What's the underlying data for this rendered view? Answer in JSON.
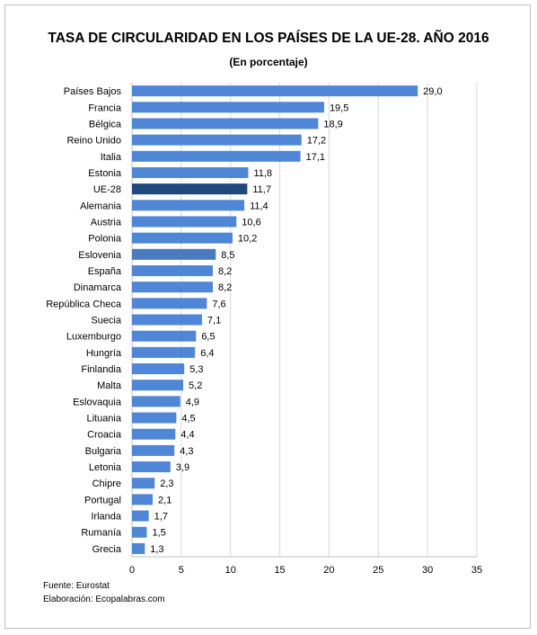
{
  "title": "TASA DE CIRCULARIDAD EN LOS PAÍSES DE LA UE-28. AÑO 2016",
  "subtitle": "(En porcentaje)",
  "source": "Fuente: Eurostat",
  "elaboration": "Elaboración: Ecopalabras.com",
  "colors": {
    "default_bar": "#4f86d6",
    "eu_bar": "#1f497d",
    "highlight_bar": "#4a7bbf",
    "gridline": "#d9d9d9",
    "axis": "#bfbfbf"
  },
  "chart_data": {
    "type": "bar",
    "orientation": "horizontal",
    "categories": [
      "Países Bajos",
      "Francia",
      "Bélgica",
      "Reino Unido",
      "Italia",
      "Estonia",
      "UE-28",
      "Alemania",
      "Austria",
      "Polonia",
      "Eslovenia",
      "España",
      "Dinamarca",
      "República Checa",
      "Suecia",
      "Luxemburgo",
      "Hungría",
      "Finlandia",
      "Malta",
      "Eslovaquia",
      "Lituania",
      "Croacia",
      "Bulgaria",
      "Letonia",
      "Chipre",
      "Portugal",
      "Irlanda",
      "Rumanía",
      "Grecia"
    ],
    "values": [
      29.0,
      19.5,
      18.9,
      17.2,
      17.1,
      11.8,
      11.7,
      11.4,
      10.6,
      10.2,
      8.5,
      8.2,
      8.2,
      7.6,
      7.1,
      6.5,
      6.4,
      5.3,
      5.2,
      4.9,
      4.5,
      4.4,
      4.3,
      3.9,
      2.3,
      2.1,
      1.7,
      1.5,
      1.3
    ],
    "value_labels": [
      "29,0",
      "19,5",
      "18,9",
      "17,2",
      "17,1",
      "11,8",
      "11,7",
      "11,4",
      "10,6",
      "10,2",
      "8,5",
      "8,2",
      "8,2",
      "7,6",
      "7,1",
      "6,5",
      "6,4",
      "5,3",
      "5,2",
      "4,9",
      "4,5",
      "4,4",
      "4,3",
      "3,9",
      "2,3",
      "2,1",
      "1,7",
      "1,5",
      "1,3"
    ],
    "highlight": {
      "UE-28": "eu_bar",
      "Eslovenia": "highlight_bar"
    },
    "xlim": [
      0,
      35
    ],
    "xticks": [
      0,
      5,
      10,
      15,
      20,
      25,
      30,
      35
    ],
    "grid": true
  }
}
